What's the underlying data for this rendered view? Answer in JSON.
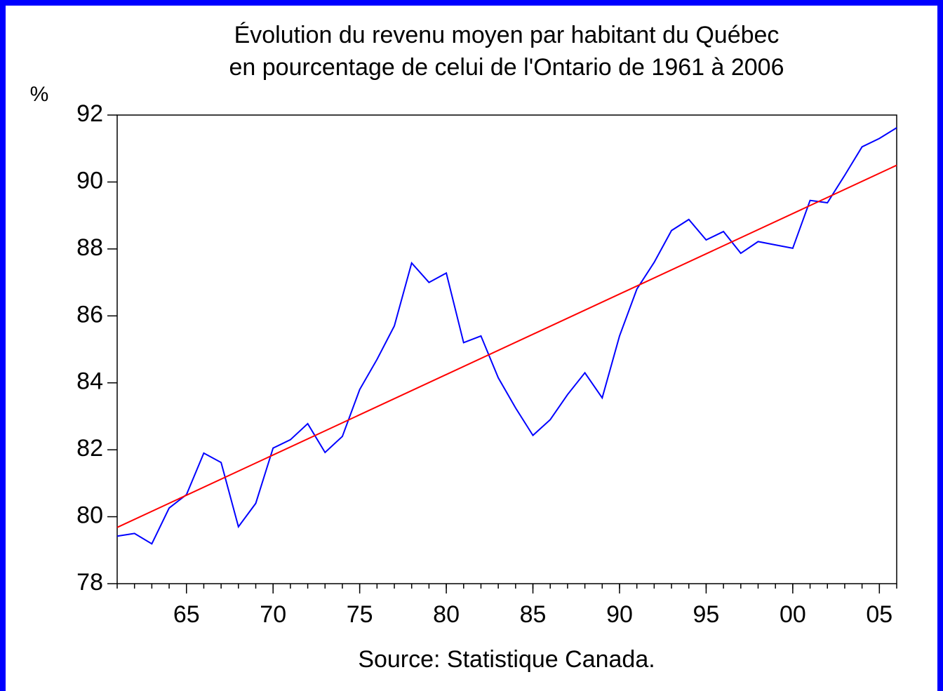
{
  "chart_data": {
    "type": "line",
    "title": [
      "Évolution du revenu moyen par habitant du Québec",
      "en pourcentage de celui de l'Ontario de 1961 à 2006"
    ],
    "y_label": "%",
    "x_label": "Source: Statistique Canada.",
    "x": [
      1961,
      1962,
      1963,
      1964,
      1965,
      1966,
      1967,
      1968,
      1969,
      1970,
      1971,
      1972,
      1973,
      1974,
      1975,
      1976,
      1977,
      1978,
      1979,
      1980,
      1981,
      1982,
      1983,
      1984,
      1985,
      1986,
      1987,
      1988,
      1989,
      1990,
      1991,
      1992,
      1993,
      1994,
      1995,
      1996,
      1997,
      1998,
      1999,
      2000,
      2001,
      2002,
      2003,
      2004,
      2005,
      2006
    ],
    "series": [
      {
        "color": "#0000ff",
        "values": [
          79.42,
          79.5,
          79.19,
          80.26,
          80.66,
          81.9,
          81.62,
          79.7,
          80.4,
          82.05,
          82.3,
          82.78,
          81.92,
          82.4,
          83.8,
          84.7,
          85.7,
          87.58,
          87.0,
          87.28,
          85.2,
          85.4,
          84.15,
          83.25,
          82.43,
          82.9,
          83.65,
          84.3,
          83.55,
          85.4,
          86.8,
          87.6,
          88.55,
          88.88,
          88.27,
          88.52,
          87.87,
          88.22,
          88.12,
          88.02,
          89.45,
          89.38,
          90.2,
          91.05,
          91.3,
          91.62
        ]
      },
      {
        "color": "#ff0000",
        "x": [
          1961,
          2006
        ],
        "values": [
          79.68,
          90.5
        ]
      }
    ],
    "xlim": [
      1961,
      2006
    ],
    "xticks": [
      {
        "value": 1965,
        "label": "65"
      },
      {
        "value": 1970,
        "label": "70"
      },
      {
        "value": 1975,
        "label": "75"
      },
      {
        "value": 1980,
        "label": "80"
      },
      {
        "value": 1985,
        "label": "85"
      },
      {
        "value": 1990,
        "label": "90"
      },
      {
        "value": 1995,
        "label": "95"
      },
      {
        "value": 2000,
        "label": "00"
      },
      {
        "value": 2005,
        "label": "05"
      }
    ],
    "ylim": [
      78,
      92
    ],
    "yticks": [
      78,
      80,
      82,
      84,
      86,
      88,
      90,
      92
    ]
  }
}
